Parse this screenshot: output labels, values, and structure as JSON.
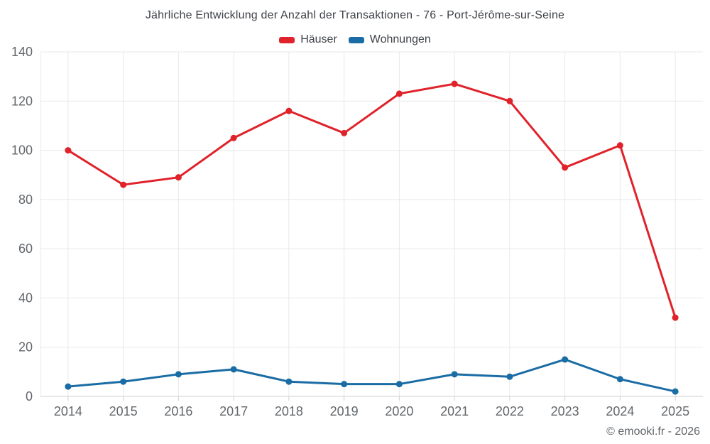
{
  "chart": {
    "title": "Jährliche Entwicklung der Anzahl der Transaktionen - 76 - Port-Jérôme-sur-Seine",
    "footer": "© emooki.fr - 2026"
  },
  "chart_data": {
    "type": "line",
    "title": "Jährliche Entwicklung der Anzahl der Transaktionen - 76 - Port-Jérôme-sur-Seine",
    "categories": [
      "2014",
      "2015",
      "2016",
      "2017",
      "2018",
      "2019",
      "2020",
      "2021",
      "2022",
      "2023",
      "2024",
      "2025"
    ],
    "series": [
      {
        "name": "Häuser",
        "color": "#e0222a",
        "values": [
          100,
          86,
          89,
          105,
          116,
          107,
          123,
          127,
          120,
          93,
          102,
          32
        ]
      },
      {
        "name": "Wohnungen",
        "color": "#1a6ca4",
        "values": [
          4,
          6,
          9,
          11,
          6,
          5,
          5,
          9,
          8,
          15,
          7,
          2
        ]
      }
    ],
    "xlabel": "",
    "ylabel": "",
    "ylim": [
      0,
      140
    ],
    "ytick_step": 20,
    "grid": true,
    "legend_position": "top",
    "grid_color": "#e8e9ea",
    "axis_line_color": "#ccd0d2",
    "tick_label_color": "#63676b"
  }
}
